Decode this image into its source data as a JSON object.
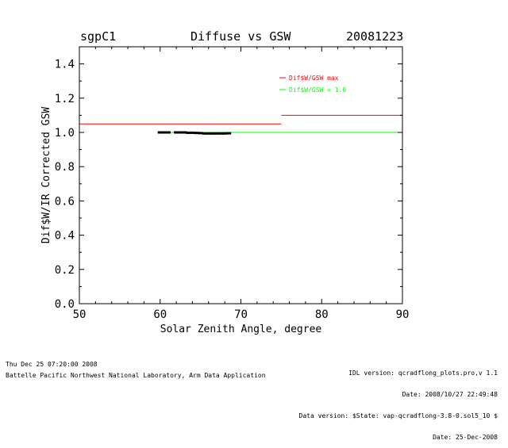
{
  "header": {
    "site": "sgpC1",
    "title": "Diffuse vs GSW",
    "date": "20081223"
  },
  "chart_data": {
    "type": "scatter",
    "title": "Diffuse vs GSW",
    "xlabel": "Solar Zenith Angle, degree",
    "ylabel": "Dif$W/IR Corrected GSW",
    "xlim": [
      50,
      90
    ],
    "ylim": [
      0.0,
      1.5
    ],
    "x_ticks": [
      "50",
      "60",
      "70",
      "80",
      "90"
    ],
    "y_ticks": [
      "0.0",
      "0.2",
      "0.4",
      "0.6",
      "0.8",
      "1.0",
      "1.2",
      "1.4"
    ],
    "legend": [
      {
        "label": "Dif$W/GSW max",
        "color": "#ff0000"
      },
      {
        "label": "Dif$W/GSW = 1.0",
        "color": "#00ff00"
      }
    ],
    "legend_position": "top-right",
    "lines": [
      {
        "name": "Dif$W/GSW max",
        "color": "#ff0000",
        "segments": [
          [
            50,
            75,
            1.05
          ],
          [
            75,
            90,
            1.1
          ]
        ]
      },
      {
        "name": "Dif$W/GSW = 1.0",
        "color": "#00ff00",
        "segments": [
          [
            60,
            90,
            1.0
          ]
        ]
      }
    ],
    "points": [
      {
        "x": 60.0,
        "y": 1.0
      },
      {
        "x": 60.5,
        "y": 1.0
      },
      {
        "x": 61.0,
        "y": 1.0
      },
      {
        "x": 62.0,
        "y": 1.0
      },
      {
        "x": 62.5,
        "y": 1.0
      },
      {
        "x": 63.0,
        "y": 1.0
      },
      {
        "x": 63.5,
        "y": 0.998
      },
      {
        "x": 64.0,
        "y": 0.998
      },
      {
        "x": 64.5,
        "y": 0.997
      },
      {
        "x": 65.0,
        "y": 0.996
      },
      {
        "x": 65.5,
        "y": 0.994
      },
      {
        "x": 66.0,
        "y": 0.994
      },
      {
        "x": 66.5,
        "y": 0.994
      },
      {
        "x": 67.0,
        "y": 0.994
      },
      {
        "x": 67.5,
        "y": 0.994
      },
      {
        "x": 68.0,
        "y": 0.994
      },
      {
        "x": 68.5,
        "y": 0.995
      }
    ]
  },
  "footer": {
    "left_line1": "Thu Dec 25 07:20:00 2008",
    "left_line2": "Battelle Pacific Northwest National Laboratory, Arm Data Application",
    "right_line1": "IDL version: qcradflong_plots.pro,v 1.1",
    "right_line2": "Date: 2008/10/27 22:49:48",
    "right_line3": "Data version: $State: vap-qcradflong-3.8-0.sol5_10 $",
    "right_line4": "Date: 25-Dec-2008"
  }
}
